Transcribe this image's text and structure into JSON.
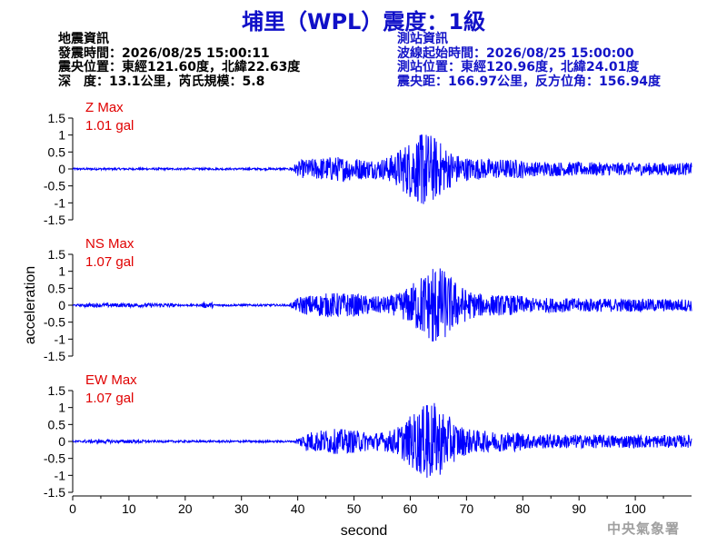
{
  "title": "埔里（WPL）震度：1級",
  "quake_info": {
    "heading": "地震資訊",
    "origin_time": "發震時間：2026/08/25 15:00:11",
    "epicenter": "震央位置：東經121.60度，北緯22.63度",
    "depth_magnitude": "深　度：13.1公里，芮氏規模：5.8"
  },
  "station_info": {
    "heading": "測站資訊",
    "wave_start": "波線起始時間：2026/08/25 15:00:00",
    "location": "測站位置：東經120.96度，北緯24.01度",
    "distance": "震央距：166.97公里，反方位角：156.94度"
  },
  "footer": "中央氣象署",
  "colors": {
    "title": "#1010c8",
    "trace": "#0000ff",
    "max_label": "#e00000",
    "station_text": "#1414c8"
  },
  "chart_data": {
    "type": "line",
    "xlabel": "second",
    "ylabel": "acceleration",
    "xlim": [
      0,
      110
    ],
    "x_ticks": [
      0,
      10,
      20,
      30,
      40,
      50,
      60,
      70,
      80,
      90,
      100
    ],
    "ylim": [
      -1.5,
      1.5
    ],
    "y_ticks": [
      1.5,
      1,
      0.5,
      0,
      -0.5,
      -1,
      -1.5
    ],
    "y_tick_labels": [
      "1.5",
      "1",
      "0.5",
      "0",
      "-0.5",
      "-1",
      "-1.5"
    ],
    "grid": false,
    "series": [
      {
        "name": "Z Max",
        "max_label": "1.01 gal",
        "max": 1.01,
        "onset": 38,
        "peak_time": 62
      },
      {
        "name": "NS Max",
        "max_label": "1.07 gal",
        "max": 1.07,
        "onset": 38,
        "peak_time": 64
      },
      {
        "name": "EW Max",
        "max_label": "1.07 gal",
        "max": 1.07,
        "onset": 39,
        "peak_time": 63
      }
    ]
  }
}
